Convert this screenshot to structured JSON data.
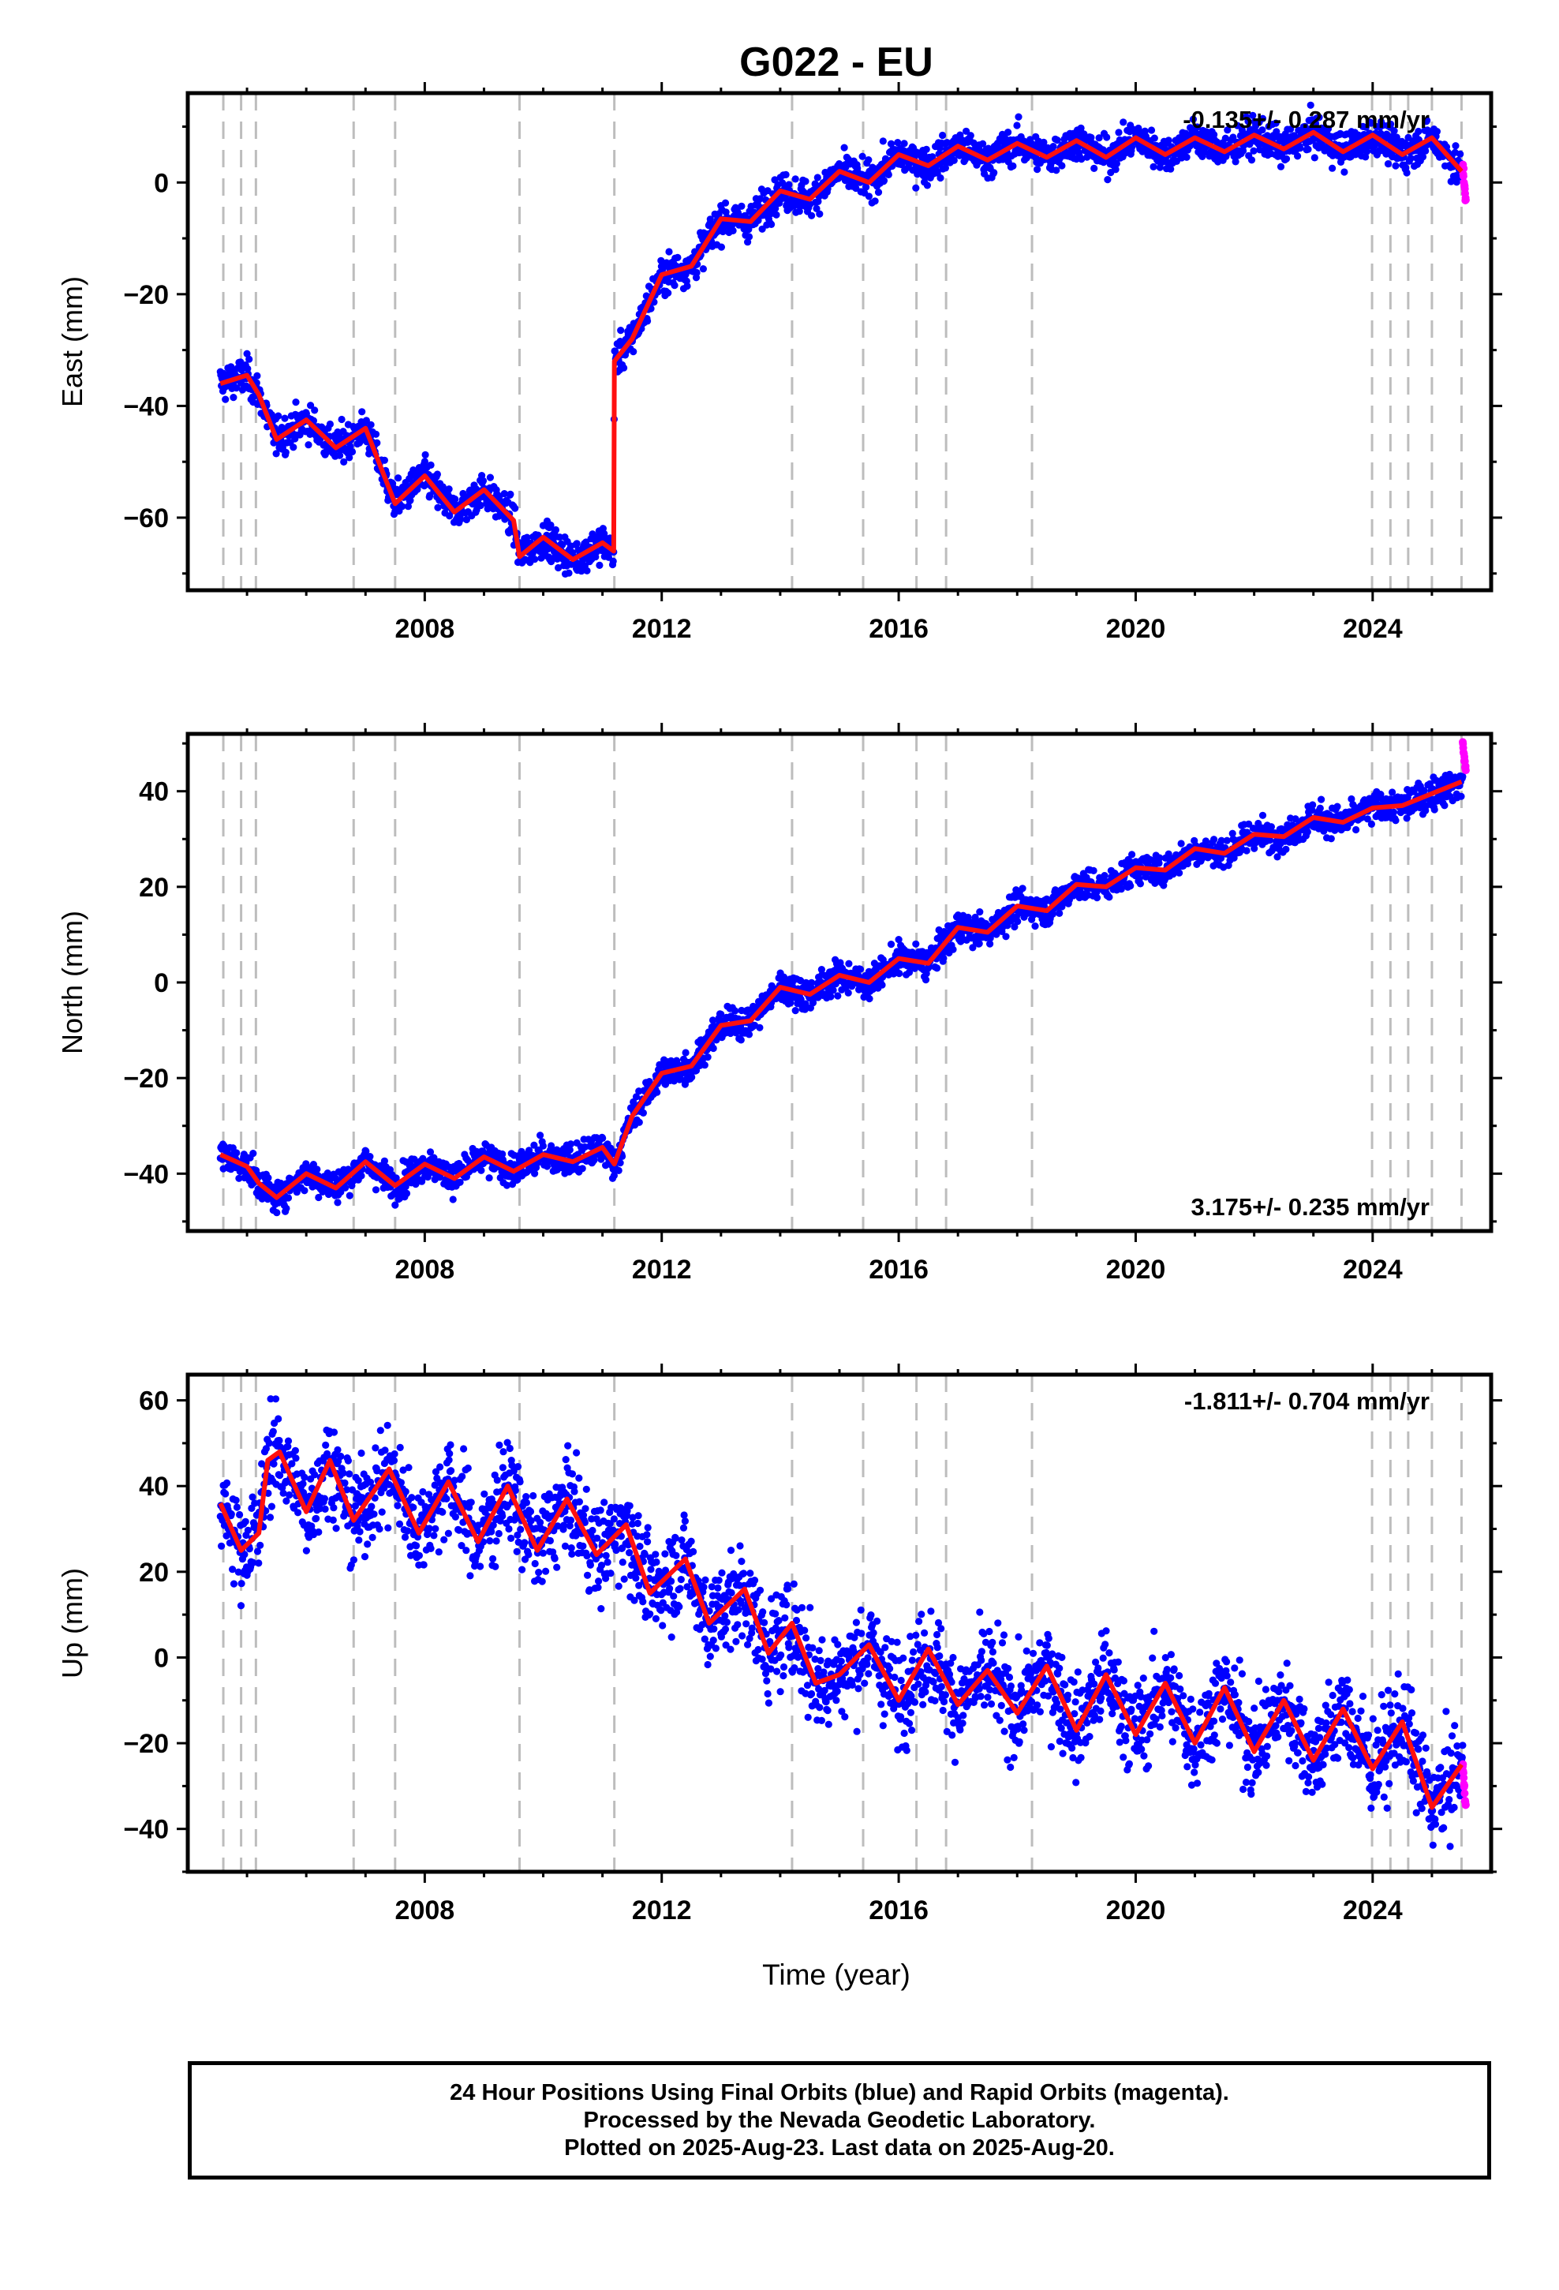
{
  "chart_data": {
    "title": "G022 - EU",
    "type": "scatter",
    "x_axis": {
      "label": "Time (year)",
      "range": [
        2004.0,
        2026.0
      ],
      "tick_labels": [
        "2008",
        "2012",
        "2016",
        "2020",
        "2024"
      ],
      "tick_values": [
        2008,
        2012,
        2016,
        2020,
        2024
      ]
    },
    "event_lines": [
      2004.6,
      2004.9,
      2005.15,
      2006.8,
      2007.5,
      2009.6,
      2011.2,
      2014.2,
      2015.4,
      2016.3,
      2016.8,
      2018.25,
      2023.99,
      2024.3,
      2024.6,
      2025.0,
      2025.5
    ],
    "panels": [
      {
        "name": "east",
        "ylabel": "East (mm)",
        "ylim": [
          -73,
          16
        ],
        "yticks": [
          -60,
          -40,
          -20,
          0
        ],
        "rate_text": "-0.135+/- 0.287 mm/yr",
        "rate_position": "top-right",
        "trend_x": [
          2004.55,
          2005.0,
          2005.2,
          2005.5,
          2006.0,
          2006.5,
          2007.0,
          2007.5,
          2008.0,
          2008.5,
          2009.0,
          2009.5,
          2009.6,
          2010.0,
          2010.5,
          2011.0,
          2011.19,
          2011.2,
          2011.5,
          2012.0,
          2012.5,
          2013.0,
          2013.5,
          2014.0,
          2014.5,
          2015.0,
          2015.5,
          2016.0,
          2016.5,
          2017.0,
          2017.5,
          2018.0,
          2018.5,
          2019.0,
          2019.5,
          2020.0,
          2020.5,
          2021.0,
          2021.5,
          2022.0,
          2022.5,
          2023.0,
          2023.5,
          2024.0,
          2024.5,
          2025.0,
          2025.5
        ],
        "trend_y": [
          -36.0,
          -34.5,
          -38.0,
          -46.0,
          -42.5,
          -47.5,
          -44.0,
          -57.5,
          -52.5,
          -59.0,
          -55.0,
          -60.5,
          -67.0,
          -63.5,
          -67.5,
          -64.5,
          -66.0,
          -32.0,
          -28.0,
          -16.5,
          -15.0,
          -6.5,
          -7.0,
          -1.5,
          -3.0,
          2.0,
          0.0,
          5.0,
          3.0,
          6.5,
          4.0,
          7.0,
          4.5,
          7.5,
          4.5,
          8.0,
          5.0,
          8.0,
          5.5,
          8.5,
          6.0,
          9.0,
          5.5,
          8.5,
          5.0,
          8.0,
          2.0
        ],
        "noise_sd": 1.6,
        "rapid_tail_y": [
          3.0,
          -3.0
        ]
      },
      {
        "name": "north",
        "ylabel": "North (mm)",
        "ylim": [
          -52,
          52
        ],
        "yticks": [
          -40,
          -20,
          0,
          20,
          40
        ],
        "rate_text": "3.175+/- 0.235 mm/yr",
        "rate_position": "bottom-right",
        "trend_x": [
          2004.55,
          2005.0,
          2005.2,
          2005.5,
          2006.0,
          2006.5,
          2007.0,
          2007.5,
          2008.0,
          2008.5,
          2009.0,
          2009.5,
          2010.0,
          2010.5,
          2011.0,
          2011.2,
          2011.5,
          2012.0,
          2012.5,
          2013.0,
          2013.5,
          2014.0,
          2014.5,
          2015.0,
          2015.5,
          2016.0,
          2016.5,
          2017.0,
          2017.5,
          2018.0,
          2018.5,
          2019.0,
          2019.5,
          2020.0,
          2020.5,
          2021.0,
          2021.5,
          2022.0,
          2022.5,
          2023.0,
          2023.5,
          2024.0,
          2024.5,
          2025.0,
          2025.5
        ],
        "trend_y": [
          -36.0,
          -38.5,
          -42.0,
          -45.0,
          -40.0,
          -43.0,
          -37.5,
          -42.5,
          -38.0,
          -41.0,
          -36.5,
          -39.5,
          -36.0,
          -37.5,
          -34.5,
          -38.0,
          -28.0,
          -19.0,
          -17.5,
          -9.0,
          -8.0,
          -1.0,
          -2.5,
          1.5,
          0.0,
          5.0,
          4.0,
          11.5,
          10.5,
          16.0,
          15.0,
          20.5,
          20.0,
          24.0,
          23.5,
          28.0,
          27.0,
          31.0,
          30.5,
          34.5,
          33.5,
          36.5,
          37.0,
          39.5,
          42.0
        ],
        "noise_sd": 1.6,
        "rapid_tail_y": [
          50.0,
          44.0
        ]
      },
      {
        "name": "up",
        "ylabel": "Up (mm)",
        "ylim": [
          -50,
          66
        ],
        "yticks": [
          -40,
          -20,
          0,
          20,
          40,
          60
        ],
        "rate_text": "-1.811+/- 0.704 mm/yr",
        "rate_position": "top-right",
        "trend_x": [
          2004.55,
          2004.9,
          2005.2,
          2005.35,
          2005.55,
          2006.0,
          2006.4,
          2006.8,
          2007.4,
          2007.9,
          2008.4,
          2008.9,
          2009.4,
          2009.9,
          2010.4,
          2010.9,
          2011.4,
          2011.8,
          2012.4,
          2012.8,
          2013.4,
          2013.8,
          2014.2,
          2014.6,
          2015.0,
          2015.5,
          2016.0,
          2016.5,
          2017.0,
          2017.5,
          2018.0,
          2018.5,
          2019.0,
          2019.5,
          2020.0,
          2020.5,
          2021.0,
          2021.5,
          2022.0,
          2022.5,
          2023.0,
          2023.5,
          2024.0,
          2024.5,
          2025.0,
          2025.5
        ],
        "trend_y": [
          36.0,
          25.0,
          29.0,
          46.0,
          48.0,
          34.0,
          46.0,
          32.0,
          44.0,
          29.0,
          41.0,
          27.0,
          40.0,
          25.0,
          37.0,
          24.0,
          31.0,
          15.0,
          23.0,
          8.0,
          16.0,
          1.0,
          8.0,
          -6.0,
          -4.0,
          3.0,
          -10.0,
          2.0,
          -11.0,
          -3.0,
          -13.0,
          -2.0,
          -17.0,
          -4.0,
          -18.0,
          -6.0,
          -20.0,
          -7.0,
          -22.0,
          -10.0,
          -24.0,
          -12.0,
          -26.0,
          -15.0,
          -35.0,
          -25.0
        ],
        "noise_sd": 5.5,
        "rapid_tail_y": [
          -25.0,
          -35.0
        ]
      }
    ],
    "legend": "none",
    "grid": false,
    "series": [
      {
        "color": "#0000ff",
        "marker": "dot"
      },
      {
        "color": "#ff00ff",
        "marker": "dot"
      },
      {
        "color": "#ff1010",
        "marker": "line"
      }
    ]
  },
  "caption": {
    "line1": "24 Hour Positions Using Final Orbits (blue) and Rapid Orbits (magenta).",
    "line2": "Processed by the Nevada Geodetic Laboratory.",
    "line3": "Plotted on 2025-Aug-23. Last data on 2025-Aug-20."
  }
}
